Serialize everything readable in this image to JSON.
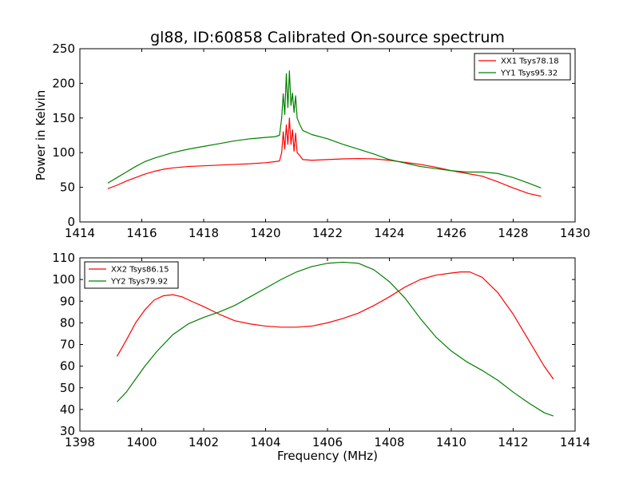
{
  "title": "gl88, ID:60858 Calibrated On-source spectrum",
  "chart_data": [
    {
      "type": "line",
      "title": "gl88, ID:60858 Calibrated On-source spectrum",
      "xlabel": "",
      "ylabel": "Power in Kelvin",
      "xlim": [
        1414,
        1430
      ],
      "ylim": [
        0,
        250
      ],
      "xticks": [
        1414,
        1416,
        1418,
        1420,
        1422,
        1424,
        1426,
        1428,
        1430
      ],
      "yticks": [
        0,
        50,
        100,
        150,
        200,
        250
      ],
      "grid": false,
      "legend_position": "upper right",
      "series": [
        {
          "name": "XX1 Tsys78.18",
          "color": "#ff0000",
          "x": [
            1414.9,
            1415.2,
            1415.5,
            1415.8,
            1416.1,
            1416.4,
            1416.7,
            1417.0,
            1417.5,
            1418.0,
            1418.5,
            1419.0,
            1419.5,
            1420.0,
            1420.3,
            1420.45,
            1420.52,
            1420.57,
            1420.62,
            1420.67,
            1420.72,
            1420.77,
            1420.82,
            1420.87,
            1420.92,
            1420.97,
            1421.02,
            1421.1,
            1421.2,
            1421.5,
            1422.0,
            1422.5,
            1423.0,
            1423.5,
            1424.0,
            1424.5,
            1425.0,
            1425.5,
            1426.0,
            1426.5,
            1427.0,
            1427.5,
            1428.0,
            1428.5,
            1428.9
          ],
          "y": [
            48,
            53,
            59,
            64,
            69,
            73,
            76,
            78,
            80,
            81,
            82,
            83,
            84,
            85.5,
            87,
            88,
            100,
            130,
            105,
            140,
            112,
            150,
            112,
            133,
            102,
            128,
            100,
            96,
            90,
            89,
            90,
            91,
            91.5,
            91,
            89,
            86,
            83,
            79,
            74,
            70,
            66,
            58,
            49,
            41,
            37
          ]
        },
        {
          "name": "YY1 Tsys95.32",
          "color": "#008000",
          "x": [
            1414.9,
            1415.2,
            1415.5,
            1415.8,
            1416.1,
            1416.4,
            1416.7,
            1417.0,
            1417.5,
            1418.0,
            1418.5,
            1419.0,
            1419.5,
            1420.0,
            1420.3,
            1420.45,
            1420.52,
            1420.57,
            1420.62,
            1420.67,
            1420.72,
            1420.77,
            1420.82,
            1420.87,
            1420.92,
            1420.97,
            1421.02,
            1421.1,
            1421.2,
            1421.5,
            1422.0,
            1422.5,
            1423.0,
            1423.5,
            1424.0,
            1424.5,
            1425.0,
            1425.5,
            1426.0,
            1426.5,
            1427.0,
            1427.5,
            1428.0,
            1428.5,
            1428.9
          ],
          "y": [
            56,
            64,
            72,
            80,
            87,
            92,
            96,
            100,
            105,
            109,
            113,
            117,
            120,
            122,
            123,
            125,
            150,
            185,
            155,
            214,
            165,
            218,
            168,
            186,
            158,
            182,
            150,
            141,
            132,
            126,
            120,
            112,
            105,
            98,
            90,
            85,
            80,
            77,
            74,
            72,
            72,
            70,
            64,
            56,
            49
          ]
        }
      ]
    },
    {
      "type": "line",
      "title": "",
      "xlabel": "Frequency (MHz)",
      "ylabel": "",
      "xlim": [
        1398,
        1414
      ],
      "ylim": [
        30,
        110
      ],
      "xticks": [
        1398,
        1400,
        1402,
        1404,
        1406,
        1408,
        1410,
        1412,
        1414
      ],
      "yticks": [
        30,
        40,
        50,
        60,
        70,
        80,
        90,
        100,
        110
      ],
      "grid": false,
      "legend_position": "upper left",
      "series": [
        {
          "name": "XX2 Tsys86.15",
          "color": "#ff0000",
          "x": [
            1399.2,
            1399.5,
            1399.8,
            1400.1,
            1400.4,
            1400.7,
            1401.0,
            1401.3,
            1401.6,
            1402.0,
            1402.5,
            1403.0,
            1403.5,
            1404.0,
            1404.5,
            1405.0,
            1405.5,
            1406.0,
            1406.5,
            1407.0,
            1407.5,
            1408.0,
            1408.5,
            1409.0,
            1409.5,
            1410.0,
            1410.3,
            1410.6,
            1411.0,
            1411.5,
            1412.0,
            1412.5,
            1413.0,
            1413.3
          ],
          "y": [
            64.5,
            72,
            80,
            86,
            90.5,
            92.5,
            93,
            92,
            90,
            87.5,
            84,
            81,
            79.5,
            78.5,
            78,
            78,
            78.5,
            80,
            82,
            84.5,
            88,
            92,
            96.5,
            100,
            102,
            103,
            103.5,
            103.5,
            101,
            94,
            84,
            72,
            60,
            54
          ]
        },
        {
          "name": "YY2 Tsys79.92",
          "color": "#008000",
          "x": [
            1399.2,
            1399.5,
            1399.8,
            1400.1,
            1400.5,
            1401.0,
            1401.5,
            1402.0,
            1402.5,
            1403.0,
            1403.5,
            1404.0,
            1404.5,
            1405.0,
            1405.5,
            1406.0,
            1406.5,
            1407.0,
            1407.5,
            1408.0,
            1408.5,
            1409.0,
            1409.5,
            1410.0,
            1410.5,
            1411.0,
            1411.5,
            1412.0,
            1412.5,
            1413.0,
            1413.3
          ],
          "y": [
            43.5,
            48,
            54,
            60,
            67,
            74.5,
            79.5,
            82.5,
            85,
            88,
            92,
            96,
            100,
            103.5,
            106,
            107.5,
            108,
            107.5,
            104.5,
            99,
            91.5,
            82,
            73.5,
            67,
            62,
            58,
            53.5,
            48,
            43,
            38.5,
            37
          ]
        }
      ]
    }
  ]
}
